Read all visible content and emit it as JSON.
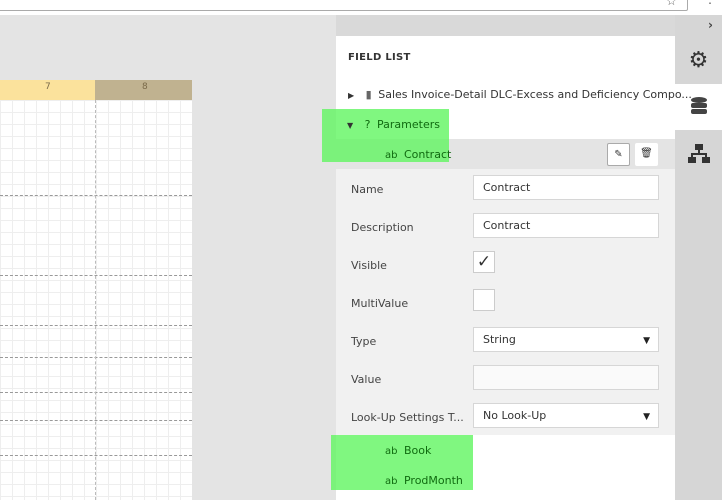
{
  "browser": {
    "star_icon": "star-icon",
    "menu_icon": "more-vert-icon"
  },
  "ruler": {
    "labels": [
      "7",
      "8"
    ]
  },
  "panel": {
    "title": "FIELD LIST",
    "datasource": "Sales Invoice-Detail DLC-Excess and Deficiency Compo...",
    "parameters": "Parameters",
    "items": [
      "Contract",
      "Book",
      "ProdMonth"
    ],
    "field_type_glyph": "ab"
  },
  "props": {
    "name_label": "Name",
    "name_value": "Contract",
    "description_label": "Description",
    "description_value": "Contract",
    "visible_label": "Visible",
    "visible_checked": true,
    "multivalue_label": "MultiValue",
    "multivalue_checked": false,
    "type_label": "Type",
    "type_value": "String",
    "value_label": "Value",
    "value_value": "",
    "lookup_label": "Look-Up Settings T...",
    "lookup_value": "No Look-Up"
  },
  "tabs": [
    "properties",
    "field-list",
    "report-explorer"
  ],
  "colors": {
    "highlight": "#64f564",
    "ruler_margin": "#fbe29c",
    "ruler_page": "#c0b290"
  }
}
